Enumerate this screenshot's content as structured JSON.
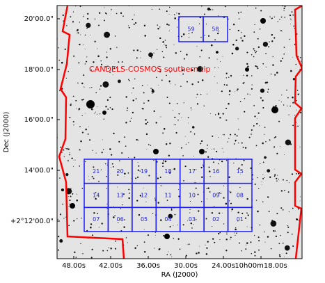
{
  "axes": {
    "x_label": "RA (J2000)",
    "y_label": "Dec (J2000)",
    "x_ticks": [
      "48.00s",
      "42.00s",
      "36.00s",
      "30.00s",
      "24.00s",
      "10h00m18.00s"
    ],
    "y_ticks": [
      "20'00.0\"",
      "18'00.0\"",
      "16'00.0\"",
      "14'00.0\"",
      "+2°12'00.0\""
    ]
  },
  "annotation": "CANDELS-COSMOS southern tip",
  "top_fields": [
    "59",
    "58"
  ],
  "fields": [
    [
      "21",
      "20",
      "19",
      "18",
      "17",
      "16",
      "15"
    ],
    [
      "14",
      "13",
      "12",
      "11",
      "10",
      "09",
      "08"
    ],
    [
      "07",
      "06",
      "05",
      "04",
      "03",
      "02",
      "01"
    ]
  ]
}
